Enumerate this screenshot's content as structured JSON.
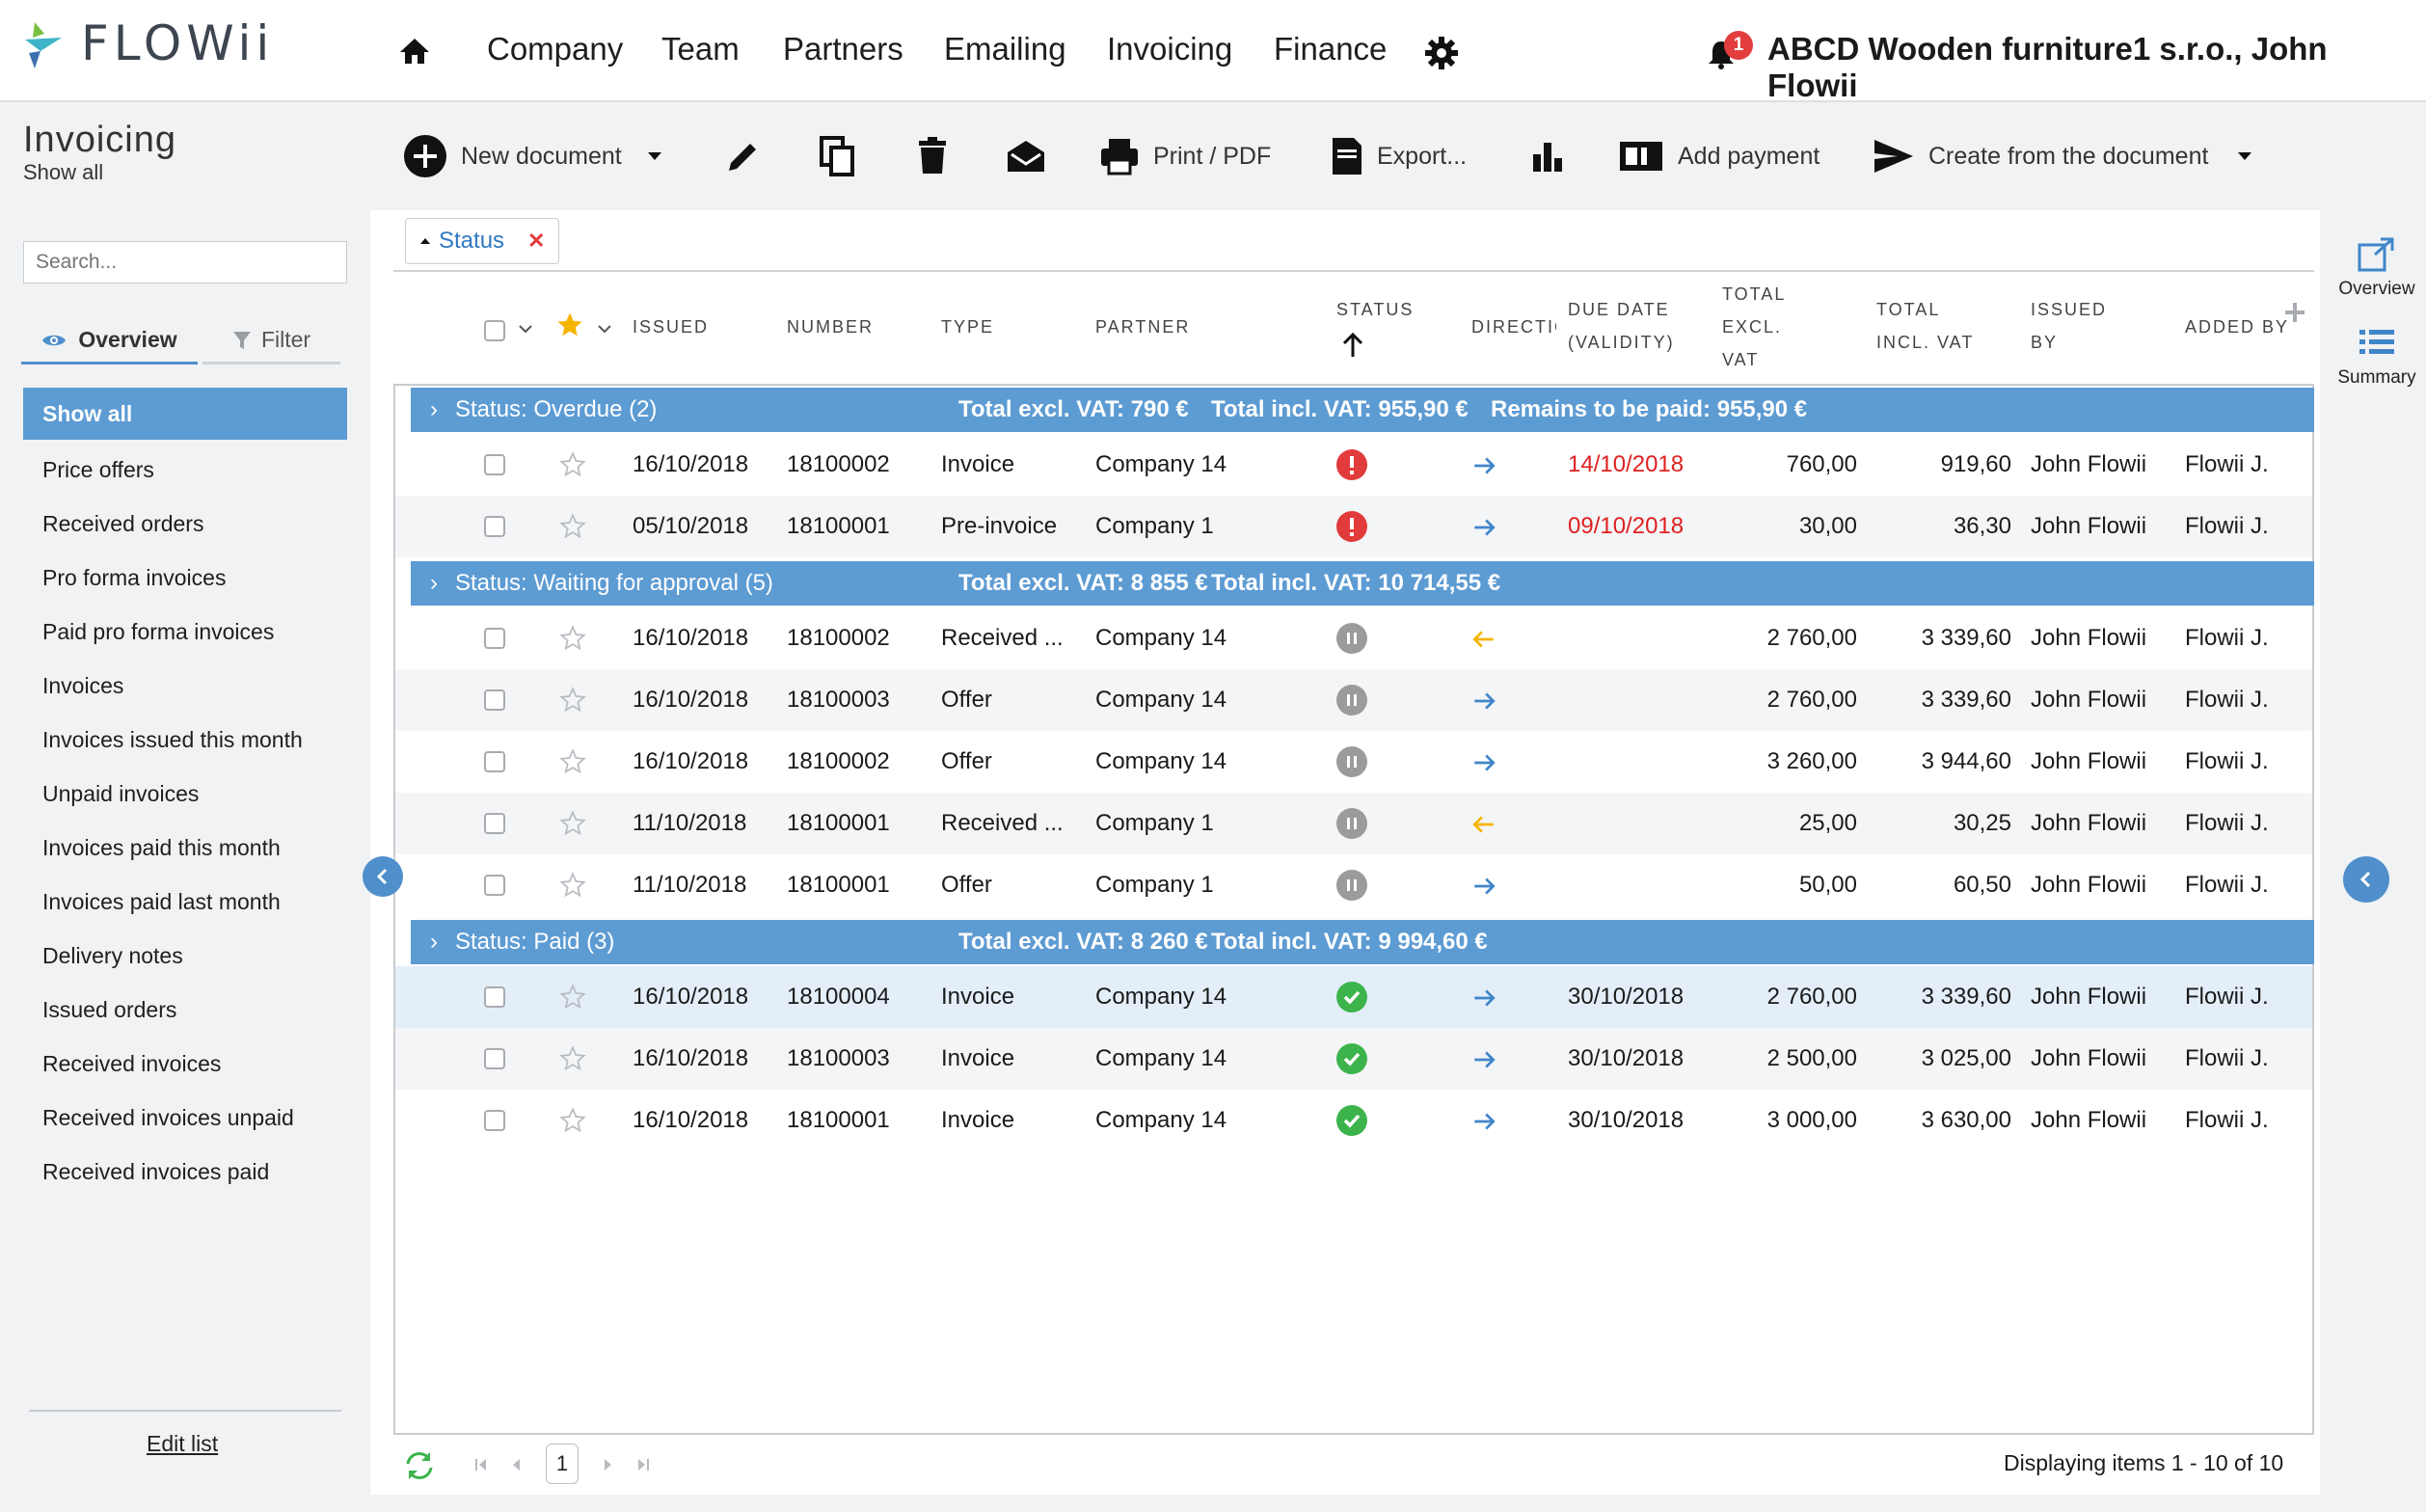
{
  "app": {
    "logo_text": "FLOWii",
    "brand_color": "#4f8fcb"
  },
  "nav": {
    "items": [
      "Company",
      "Team",
      "Partners",
      "Emailing",
      "Invoicing",
      "Finance"
    ],
    "notifications": "1",
    "company": "ABCD Wooden furniture1 s.r.o., John Flowii"
  },
  "page": {
    "title": "Invoicing",
    "subtitle": "Show all"
  },
  "toolbar": {
    "new_document": "New document",
    "print": "Print / PDF",
    "export": "Export...",
    "add_payment": "Add payment",
    "create_from": "Create from the document"
  },
  "sidebar": {
    "search_placeholder": "Search...",
    "tab_overview": "Overview",
    "tab_filter": "Filter",
    "selected": "Show all",
    "items": [
      "Price offers",
      "Received orders",
      "Pro forma invoices",
      "Paid pro forma invoices",
      "Invoices",
      "Invoices issued this month",
      "Unpaid invoices",
      "Invoices paid this month",
      "Invoices paid last month",
      "Delivery notes",
      "Issued orders",
      "Received invoices",
      "Received invoices unpaid",
      "Received invoices paid"
    ],
    "edit_list": "Edit list"
  },
  "filter_chip": "Status",
  "columns": {
    "issued": "ISSUED",
    "number": "NUMBER",
    "type": "TYPE",
    "partner": "PARTNER",
    "status": "STATUS",
    "direction": "DIRECTIC",
    "due_1": "DUE DATE",
    "due_2": "(VALIDITY)",
    "excl_1": "TOTAL",
    "excl_2": "EXCL.",
    "excl_3": "VAT",
    "incl_1": "TOTAL",
    "incl_2": "INCL. VAT",
    "issued_by_1": "ISSUED",
    "issued_by_2": "BY",
    "added_by": "ADDED BY"
  },
  "groups": [
    {
      "title": "Status: Overdue (2)",
      "excl": "Total excl. VAT: 790 €",
      "incl": "Total incl. VAT: 955,90 €",
      "remains": "Remains to be paid: 955,90 €",
      "rows": [
        {
          "issued": "16/10/2018",
          "number": "18100002",
          "type": "Invoice",
          "partner": "Company 14",
          "status": "overdue",
          "direction": "out",
          "due": "14/10/2018",
          "due_color": "#e02020",
          "excl": "760,00",
          "incl": "919,60",
          "issued_by": "John Flowii",
          "added_by": "Flowii J."
        },
        {
          "issued": "05/10/2018",
          "number": "18100001",
          "type": "Pre-invoice",
          "partner": "Company 1",
          "status": "overdue",
          "direction": "out",
          "due": "09/10/2018",
          "due_color": "#e02020",
          "excl": "30,00",
          "incl": "36,30",
          "issued_by": "John Flowii",
          "added_by": "Flowii J."
        }
      ]
    },
    {
      "title": "Status: Waiting for approval (5)",
      "excl": "Total excl. VAT: 8 855 €",
      "incl": "Total incl. VAT: 10 714,55 €",
      "remains": "",
      "rows": [
        {
          "issued": "16/10/2018",
          "number": "18100002",
          "type": "Received ...",
          "partner": "Company 14",
          "status": "waiting",
          "direction": "in",
          "due": "",
          "excl": "2 760,00",
          "incl": "3 339,60",
          "issued_by": "John Flowii",
          "added_by": "Flowii J."
        },
        {
          "issued": "16/10/2018",
          "number": "18100003",
          "type": "Offer",
          "partner": "Company 14",
          "status": "waiting",
          "direction": "out",
          "due": "",
          "excl": "2 760,00",
          "incl": "3 339,60",
          "issued_by": "John Flowii",
          "added_by": "Flowii J."
        },
        {
          "issued": "16/10/2018",
          "number": "18100002",
          "type": "Offer",
          "partner": "Company 14",
          "status": "waiting",
          "direction": "out",
          "due": "",
          "excl": "3 260,00",
          "incl": "3 944,60",
          "issued_by": "John Flowii",
          "added_by": "Flowii J."
        },
        {
          "issued": "11/10/2018",
          "number": "18100001",
          "type": "Received ...",
          "partner": "Company 1",
          "status": "waiting",
          "direction": "in",
          "due": "",
          "excl": "25,00",
          "incl": "30,25",
          "issued_by": "John Flowii",
          "added_by": "Flowii J."
        },
        {
          "issued": "11/10/2018",
          "number": "18100001",
          "type": "Offer",
          "partner": "Company 1",
          "status": "waiting",
          "direction": "out",
          "due": "",
          "excl": "50,00",
          "incl": "60,50",
          "issued_by": "John Flowii",
          "added_by": "Flowii J."
        }
      ]
    },
    {
      "title": "Status: Paid (3)",
      "excl": "Total excl. VAT: 8 260 €",
      "incl": "Total incl. VAT: 9 994,60 €",
      "remains": "",
      "rows": [
        {
          "issued": "16/10/2018",
          "number": "18100004",
          "type": "Invoice",
          "partner": "Company 14",
          "status": "paid",
          "direction": "out",
          "due": "30/10/2018",
          "due_color": "#1a1a1a",
          "excl": "2 760,00",
          "incl": "3 339,60",
          "issued_by": "John Flowii",
          "added_by": "Flowii J."
        },
        {
          "issued": "16/10/2018",
          "number": "18100003",
          "type": "Invoice",
          "partner": "Company 14",
          "status": "paid",
          "direction": "out",
          "due": "30/10/2018",
          "due_color": "#1a1a1a",
          "excl": "2 500,00",
          "incl": "3 025,00",
          "issued_by": "John Flowii",
          "added_by": "Flowii J."
        },
        {
          "issued": "16/10/2018",
          "number": "18100001",
          "type": "Invoice",
          "partner": "Company 14",
          "status": "paid",
          "direction": "out",
          "due": "30/10/2018",
          "due_color": "#1a1a1a",
          "excl": "3 000,00",
          "incl": "3 630,00",
          "issued_by": "John Flowii",
          "added_by": "Flowii J."
        }
      ]
    }
  ],
  "status_colors": {
    "overdue": "#e23b3b",
    "waiting": "#9b9b9b",
    "paid": "#3cb44b"
  },
  "direction_colors": {
    "out": "#3f86c9",
    "in": "#f4b400"
  },
  "pager": {
    "page": "1",
    "displaying": "Displaying items 1 - 10 of 10"
  },
  "right_panel": {
    "overview": "Overview",
    "summary": "Summary"
  }
}
